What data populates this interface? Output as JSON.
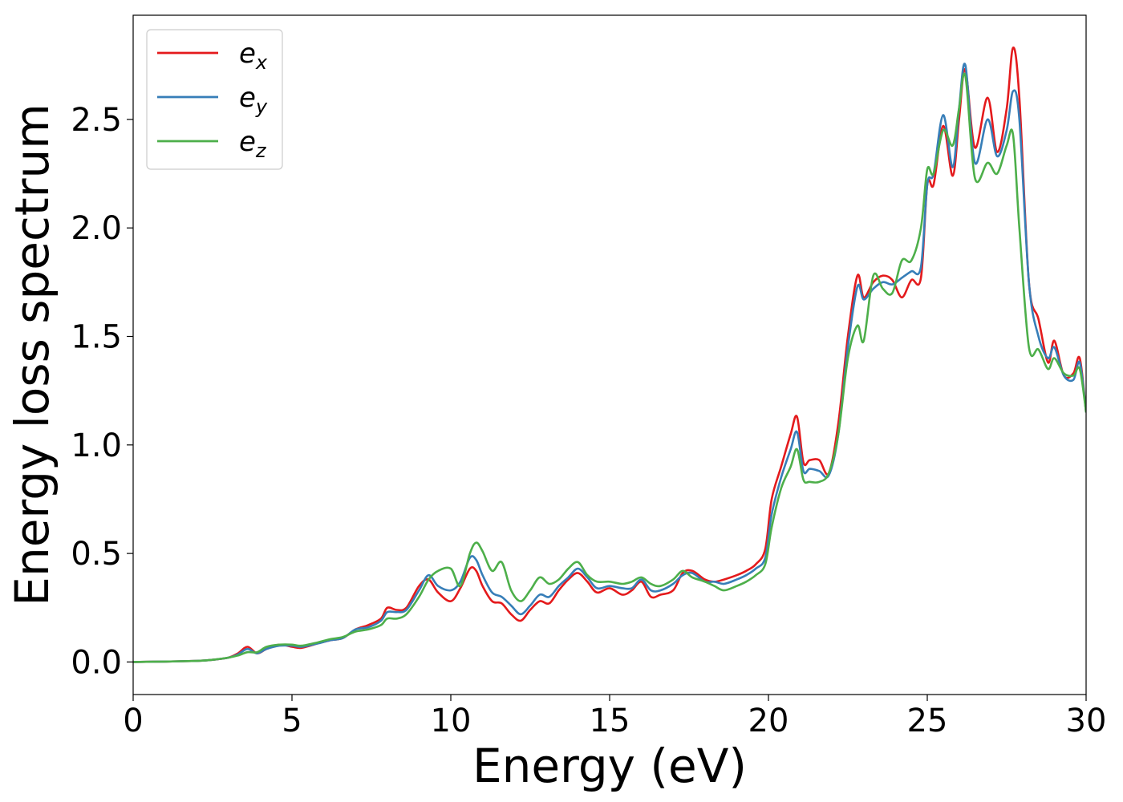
{
  "chart_data": {
    "type": "line",
    "xlabel": "Energy (eV)",
    "ylabel": "Energy loss spectrum",
    "xlim": [
      0,
      30
    ],
    "ylim": [
      -0.15,
      2.98
    ],
    "xticks": [
      "0",
      "5",
      "10",
      "15",
      "20",
      "25",
      "30"
    ],
    "yticks": [
      "0.0",
      "0.5",
      "1.0",
      "1.5",
      "2.0",
      "2.5"
    ],
    "legend_position": "top-left",
    "grid": false,
    "series": [
      {
        "name": "e_x",
        "label_base": "e",
        "label_sub": "x",
        "color": "#e41a1c",
        "x": [
          0,
          1,
          2,
          2.5,
          3,
          3.3,
          3.6,
          3.9,
          4.2,
          4.6,
          5,
          5.3,
          5.8,
          6.2,
          6.6,
          7,
          7.4,
          7.8,
          8,
          8.3,
          8.6,
          9,
          9.3,
          9.6,
          10,
          10.3,
          10.6,
          10.8,
          11,
          11.3,
          11.6,
          11.9,
          12.2,
          12.5,
          12.8,
          13.1,
          13.4,
          13.7,
          14,
          14.3,
          14.6,
          15,
          15.4,
          15.7,
          16,
          16.3,
          16.6,
          17,
          17.3,
          17.6,
          18,
          18.3,
          18.6,
          19,
          19.3,
          19.6,
          19.9,
          20.1,
          20.4,
          20.7,
          20.9,
          21.1,
          21.3,
          21.6,
          21.9,
          22.2,
          22.5,
          22.8,
          23,
          23.3,
          23.6,
          23.9,
          24.2,
          24.5,
          24.8,
          25,
          25.2,
          25.5,
          25.8,
          26,
          26.2,
          26.5,
          26.9,
          27.2,
          27.5,
          27.7,
          27.9,
          28.2,
          28.5,
          28.8,
          29,
          29.3,
          29.6,
          29.8,
          30
        ],
        "y": [
          0,
          0.002,
          0.005,
          0.01,
          0.02,
          0.04,
          0.07,
          0.04,
          0.06,
          0.08,
          0.07,
          0.065,
          0.085,
          0.1,
          0.11,
          0.15,
          0.17,
          0.2,
          0.25,
          0.24,
          0.25,
          0.35,
          0.38,
          0.32,
          0.28,
          0.34,
          0.43,
          0.42,
          0.35,
          0.28,
          0.27,
          0.22,
          0.19,
          0.24,
          0.28,
          0.27,
          0.33,
          0.38,
          0.41,
          0.37,
          0.32,
          0.34,
          0.31,
          0.33,
          0.37,
          0.3,
          0.31,
          0.33,
          0.41,
          0.42,
          0.38,
          0.37,
          0.38,
          0.4,
          0.42,
          0.45,
          0.52,
          0.75,
          0.9,
          1.05,
          1.13,
          0.92,
          0.93,
          0.93,
          0.87,
          1.1,
          1.5,
          1.78,
          1.68,
          1.75,
          1.78,
          1.76,
          1.68,
          1.76,
          1.77,
          2.2,
          2.2,
          2.47,
          2.24,
          2.5,
          2.73,
          2.37,
          2.6,
          2.35,
          2.55,
          2.83,
          2.6,
          1.75,
          1.58,
          1.38,
          1.48,
          1.32,
          1.33,
          1.4,
          1.15
        ]
      },
      {
        "name": "e_y",
        "label_base": "e",
        "label_sub": "y",
        "color": "#377eb8",
        "x": [
          0,
          1,
          2,
          2.5,
          3,
          3.3,
          3.6,
          3.9,
          4.2,
          4.6,
          5,
          5.3,
          5.8,
          6.2,
          6.6,
          7,
          7.4,
          7.8,
          8,
          8.3,
          8.6,
          9,
          9.3,
          9.6,
          10,
          10.3,
          10.6,
          10.8,
          11,
          11.3,
          11.6,
          11.9,
          12.2,
          12.5,
          12.8,
          13.1,
          13.4,
          13.7,
          14,
          14.3,
          14.6,
          15,
          15.4,
          15.7,
          16,
          16.3,
          16.6,
          17,
          17.3,
          17.6,
          18,
          18.3,
          18.6,
          19,
          19.3,
          19.6,
          19.9,
          20.1,
          20.4,
          20.7,
          20.9,
          21.1,
          21.3,
          21.6,
          21.9,
          22.2,
          22.5,
          22.8,
          23,
          23.3,
          23.6,
          23.9,
          24.2,
          24.5,
          24.8,
          25,
          25.2,
          25.5,
          25.8,
          26,
          26.2,
          26.5,
          26.9,
          27.2,
          27.5,
          27.7,
          27.9,
          28.2,
          28.5,
          28.8,
          29,
          29.3,
          29.6,
          29.8,
          30
        ],
        "y": [
          0,
          0.002,
          0.005,
          0.01,
          0.02,
          0.035,
          0.06,
          0.04,
          0.06,
          0.075,
          0.075,
          0.07,
          0.085,
          0.1,
          0.11,
          0.15,
          0.16,
          0.19,
          0.23,
          0.23,
          0.24,
          0.33,
          0.4,
          0.35,
          0.33,
          0.37,
          0.48,
          0.47,
          0.4,
          0.32,
          0.3,
          0.26,
          0.22,
          0.26,
          0.31,
          0.3,
          0.35,
          0.39,
          0.43,
          0.39,
          0.34,
          0.35,
          0.34,
          0.34,
          0.38,
          0.33,
          0.33,
          0.36,
          0.4,
          0.41,
          0.37,
          0.37,
          0.36,
          0.38,
          0.4,
          0.43,
          0.48,
          0.68,
          0.85,
          0.98,
          1.06,
          0.88,
          0.89,
          0.88,
          0.86,
          1.05,
          1.45,
          1.73,
          1.67,
          1.72,
          1.75,
          1.74,
          1.77,
          1.8,
          1.82,
          2.2,
          2.25,
          2.52,
          2.28,
          2.55,
          2.75,
          2.3,
          2.5,
          2.33,
          2.45,
          2.63,
          2.5,
          1.75,
          1.5,
          1.4,
          1.45,
          1.32,
          1.3,
          1.38,
          1.15
        ]
      },
      {
        "name": "e_z",
        "label_base": "e",
        "label_sub": "z",
        "color": "#4daf4a",
        "x": [
          0,
          1,
          2,
          2.5,
          3,
          3.3,
          3.6,
          3.9,
          4.2,
          4.6,
          5,
          5.3,
          5.8,
          6.2,
          6.6,
          7,
          7.4,
          7.8,
          8,
          8.3,
          8.6,
          9,
          9.3,
          9.6,
          10,
          10.3,
          10.6,
          10.8,
          11,
          11.3,
          11.6,
          11.9,
          12.2,
          12.5,
          12.8,
          13.1,
          13.4,
          13.7,
          14,
          14.3,
          14.6,
          15,
          15.4,
          15.7,
          16,
          16.3,
          16.6,
          17,
          17.3,
          17.6,
          18,
          18.3,
          18.6,
          19,
          19.3,
          19.6,
          19.9,
          20.1,
          20.4,
          20.7,
          20.9,
          21.1,
          21.3,
          21.6,
          21.9,
          22.2,
          22.5,
          22.8,
          23,
          23.3,
          23.6,
          23.9,
          24.2,
          24.5,
          24.8,
          25,
          25.2,
          25.5,
          25.8,
          26,
          26.2,
          26.5,
          26.9,
          27.2,
          27.5,
          27.7,
          27.9,
          28.2,
          28.5,
          28.8,
          29,
          29.3,
          29.6,
          29.8,
          30
        ],
        "y": [
          0,
          0.002,
          0.005,
          0.01,
          0.02,
          0.03,
          0.045,
          0.045,
          0.07,
          0.08,
          0.08,
          0.075,
          0.09,
          0.105,
          0.115,
          0.14,
          0.15,
          0.17,
          0.2,
          0.2,
          0.22,
          0.3,
          0.38,
          0.42,
          0.43,
          0.35,
          0.5,
          0.55,
          0.51,
          0.42,
          0.46,
          0.33,
          0.28,
          0.33,
          0.39,
          0.36,
          0.38,
          0.43,
          0.46,
          0.4,
          0.37,
          0.37,
          0.36,
          0.37,
          0.39,
          0.36,
          0.35,
          0.38,
          0.42,
          0.39,
          0.37,
          0.35,
          0.33,
          0.35,
          0.37,
          0.4,
          0.45,
          0.62,
          0.8,
          0.9,
          0.98,
          0.84,
          0.83,
          0.83,
          0.87,
          1.05,
          1.4,
          1.55,
          1.48,
          1.78,
          1.72,
          1.7,
          1.85,
          1.85,
          2.0,
          2.27,
          2.25,
          2.45,
          2.38,
          2.55,
          2.7,
          2.23,
          2.3,
          2.25,
          2.38,
          2.43,
          2.0,
          1.45,
          1.44,
          1.35,
          1.4,
          1.33,
          1.32,
          1.35,
          1.15
        ]
      }
    ]
  }
}
